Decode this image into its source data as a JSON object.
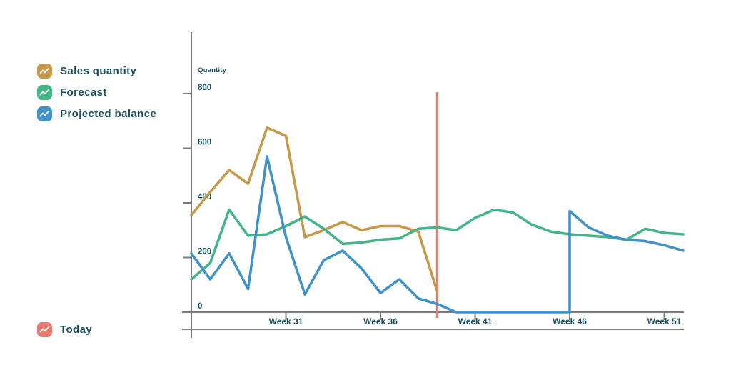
{
  "legend": {
    "items": [
      {
        "id": "sales-quantity",
        "label": "Sales quantity",
        "color": "#C69A4A"
      },
      {
        "id": "forecast",
        "label": "Forecast",
        "color": "#44B586"
      },
      {
        "id": "projected-balance",
        "label": "Projected balance",
        "color": "#4192C9"
      }
    ],
    "today": {
      "label": "Today",
      "color": "#E87A71"
    }
  },
  "axis": {
    "ylabel": "Quantity",
    "line_color": "#7B7B7B",
    "text_color": "#1A505E"
  },
  "chart_data": {
    "type": "line",
    "title": "",
    "xlabel": "",
    "ylabel": "Quantity",
    "grid": "off",
    "legend_position": "top-left",
    "x_unit": "week",
    "x_range_weeks": [
      26,
      52
    ],
    "ylim": [
      0,
      800
    ],
    "y_ticks": [
      0,
      200,
      400,
      600,
      800
    ],
    "y_tick_labels": [
      "0",
      "200",
      "400",
      "600",
      "800"
    ],
    "x_tick_weeks": [
      31,
      36,
      41,
      46,
      51
    ],
    "x_tick_labels": [
      "Week 31",
      "Week 36",
      "Week 41",
      "Week 46",
      "Week 51"
    ],
    "today_line": {
      "label": "Today",
      "color": "#E87A71",
      "week": 39,
      "y_top_value": 805
    },
    "series": [
      {
        "name": "Sales quantity",
        "color": "#C69A4A",
        "points": [
          [
            26,
            355
          ],
          [
            27,
            440
          ],
          [
            28,
            520
          ],
          [
            29,
            470
          ],
          [
            30,
            675
          ],
          [
            31,
            645
          ],
          [
            32,
            275
          ],
          [
            33,
            300
          ],
          [
            34,
            330
          ],
          [
            35,
            300
          ],
          [
            36,
            315
          ],
          [
            37,
            315
          ],
          [
            38,
            295
          ],
          [
            39,
            75
          ]
        ]
      },
      {
        "name": "Forecast",
        "color": "#44B586",
        "points": [
          [
            26,
            120
          ],
          [
            27,
            180
          ],
          [
            28,
            375
          ],
          [
            29,
            280
          ],
          [
            30,
            285
          ],
          [
            31,
            315
          ],
          [
            32,
            350
          ],
          [
            33,
            305
          ],
          [
            34,
            250
          ],
          [
            35,
            255
          ],
          [
            36,
            265
          ],
          [
            37,
            270
          ],
          [
            38,
            305
          ],
          [
            39,
            310
          ],
          [
            40,
            300
          ],
          [
            41,
            345
          ],
          [
            42,
            375
          ],
          [
            43,
            365
          ],
          [
            44,
            320
          ],
          [
            45,
            295
          ],
          [
            46,
            285
          ],
          [
            47,
            280
          ],
          [
            48,
            275
          ],
          [
            49,
            265
          ],
          [
            50,
            305
          ],
          [
            51,
            290
          ],
          [
            52,
            285
          ]
        ]
      },
      {
        "name": "Projected balance",
        "color": "#4192C9",
        "points": [
          [
            26,
            215
          ],
          [
            27,
            120
          ],
          [
            28,
            215
          ],
          [
            29,
            85
          ],
          [
            30,
            570
          ],
          [
            31,
            275
          ],
          [
            32,
            65
          ],
          [
            33,
            190
          ],
          [
            34,
            225
          ],
          [
            35,
            160
          ],
          [
            36,
            70
          ],
          [
            37,
            120
          ],
          [
            38,
            50
          ],
          [
            39,
            30
          ],
          [
            40,
            0
          ],
          [
            41,
            0
          ],
          [
            42,
            0
          ],
          [
            43,
            0
          ],
          [
            44,
            0
          ],
          [
            45,
            0
          ],
          [
            46,
            0
          ],
          [
            46,
            370
          ],
          [
            47,
            310
          ],
          [
            48,
            280
          ],
          [
            49,
            265
          ],
          [
            50,
            260
          ],
          [
            51,
            245
          ],
          [
            52,
            225
          ]
        ]
      }
    ]
  }
}
